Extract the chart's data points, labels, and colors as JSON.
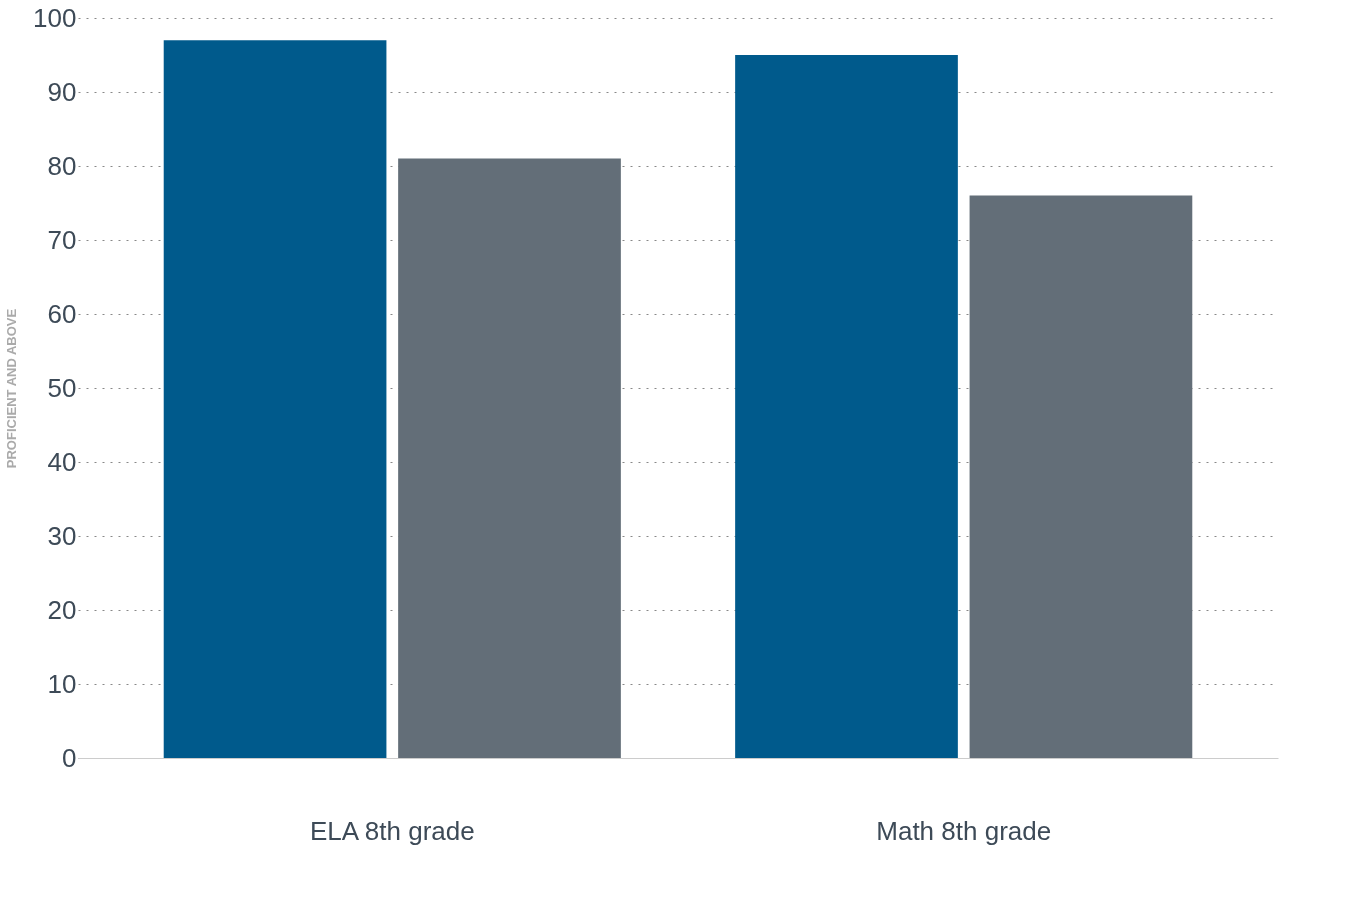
{
  "chart_data": {
    "type": "bar",
    "ylabel": "PROFICIENT AND ABOVE",
    "categories": [
      "ELA 8th grade",
      "Math 8th grade"
    ],
    "series": [
      {
        "color": "#005a8c",
        "values": [
          97,
          95
        ]
      },
      {
        "color": "#636e78",
        "values": [
          81,
          76
        ]
      }
    ],
    "ylim": [
      0,
      100
    ],
    "yticks": [
      0,
      10,
      20,
      30,
      40,
      50,
      60,
      70,
      80,
      90,
      100
    ],
    "grid": "y",
    "legend": false
  }
}
